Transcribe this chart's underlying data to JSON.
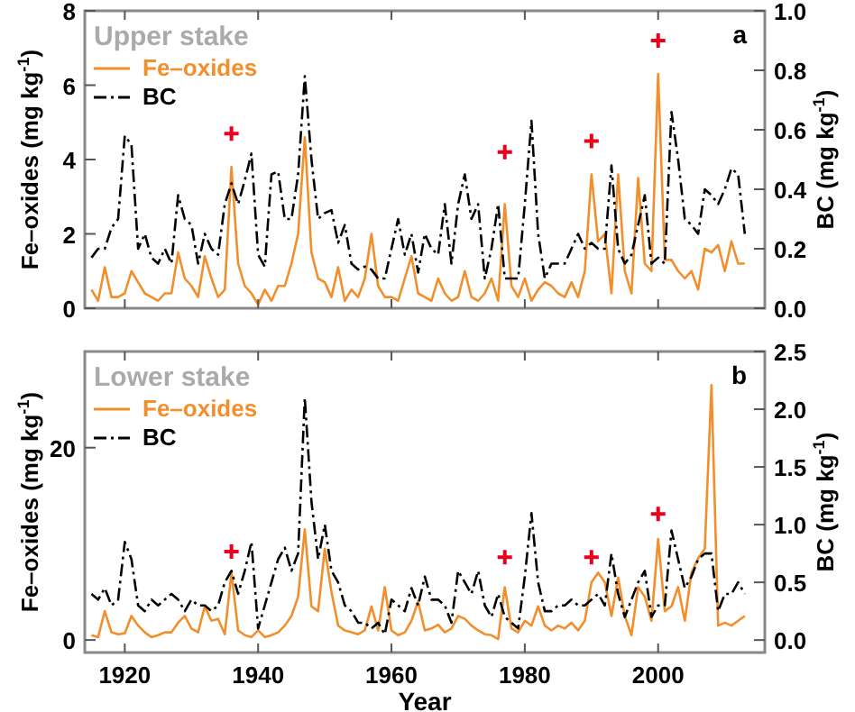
{
  "chart_data": [
    {
      "type": "line",
      "title": "Upper stake",
      "ylabel": "Fe–oxides (mg kg$^{-1}$)",
      "y2label": "BC (mg kg$^{-1}$)",
      "annotations": [
        "a"
      ],
      "legend": "top left",
      "tick_labels": "y",
      "xlim": [
        1914,
        2016
      ],
      "xticks": [
        1920,
        1940,
        1960,
        1980,
        2000
      ],
      "ylim": [
        0,
        8
      ],
      "yticks": [
        0,
        2,
        4,
        6,
        8
      ],
      "y2lim": [
        0,
        1
      ],
      "y2ticks": [
        {
          "value": 0,
          "label": "0.0"
        },
        {
          "value": 0.2,
          "label": "0.2"
        },
        {
          "value": 0.4,
          "label": "0.4"
        },
        {
          "value": 0.6,
          "label": "0.6"
        },
        {
          "value": 0.8,
          "label": "0.8"
        },
        {
          "value": 1,
          "label": "1.0"
        }
      ],
      "x": [
        1915,
        1916,
        1917,
        1918,
        1919,
        1920,
        1921,
        1922,
        1923,
        1924,
        1925,
        1926,
        1927,
        1928,
        1929,
        1930,
        1931,
        1932,
        1933,
        1934,
        1935,
        1936,
        1937,
        1938,
        1939,
        1940,
        1941,
        1942,
        1943,
        1944,
        1945,
        1946,
        1947,
        1948,
        1949,
        1950,
        1951,
        1952,
        1953,
        1954,
        1955,
        1956,
        1957,
        1958,
        1959,
        1960,
        1961,
        1962,
        1963,
        1964,
        1965,
        1966,
        1967,
        1968,
        1969,
        1970,
        1971,
        1972,
        1973,
        1974,
        1975,
        1976,
        1977,
        1978,
        1979,
        1980,
        1981,
        1982,
        1983,
        1984,
        1985,
        1986,
        1987,
        1988,
        1989,
        1990,
        1991,
        1992,
        1993,
        1994,
        1995,
        1996,
        1997,
        1998,
        1999,
        2000,
        2001,
        2002,
        2003,
        2004,
        2005,
        2006,
        2007,
        2008,
        2009,
        2010,
        2011,
        2012,
        2013
      ],
      "series": [
        {
          "name": "Fe–oxides",
          "color": "#f28e2b",
          "line_style": "solid",
          "values": [
            0.5,
            0.2,
            1.1,
            0.3,
            0.3,
            0.4,
            1.0,
            0.7,
            0.4,
            0.3,
            0.2,
            0.4,
            0.4,
            1.5,
            0.8,
            0.6,
            0.3,
            1.4,
            0.8,
            0.3,
            0.5,
            3.8,
            1.2,
            0.6,
            0.4,
            0.1,
            0.5,
            0.2,
            0.6,
            0.6,
            1.2,
            2.0,
            4.6,
            1.5,
            0.8,
            0.7,
            0.3,
            1.1,
            0.2,
            0.5,
            0.3,
            0.8,
            2.0,
            0.6,
            0.3,
            0.3,
            0.2,
            0.8,
            1.4,
            0.4,
            0.3,
            0.2,
            0.8,
            0.4,
            0.2,
            0.3,
            1.0,
            0.3,
            0.2,
            0.4,
            0.8,
            0.2,
            2.8,
            0.6,
            0.3,
            0.8,
            0.2,
            0.5,
            0.7,
            0.6,
            0.4,
            0.3,
            0.7,
            0.3,
            1.0,
            3.6,
            1.8,
            2.0,
            0.4,
            3.6,
            1.0,
            0.4,
            3.5,
            1.2,
            1.0,
            6.3,
            1.3,
            1.3,
            1.0,
            0.8,
            1.0,
            0.5,
            1.6,
            1.5,
            1.7,
            1.0,
            1.8,
            1.2,
            1.2
          ]
        },
        {
          "name": "BC",
          "color": "#000000",
          "axis": "y2",
          "line_style": "dashdot",
          "values": [
            0.17,
            0.2,
            0.2,
            0.27,
            0.3,
            0.58,
            0.55,
            0.2,
            0.25,
            0.17,
            0.15,
            0.2,
            0.15,
            0.38,
            0.3,
            0.28,
            0.15,
            0.25,
            0.2,
            0.18,
            0.35,
            0.42,
            0.35,
            0.43,
            0.52,
            0.18,
            0.14,
            0.45,
            0.46,
            0.3,
            0.3,
            0.45,
            0.78,
            0.5,
            0.3,
            0.32,
            0.33,
            0.22,
            0.28,
            0.15,
            0.13,
            0.14,
            0.13,
            0.1,
            0.1,
            0.2,
            0.3,
            0.18,
            0.25,
            0.12,
            0.25,
            0.2,
            0.18,
            0.35,
            0.15,
            0.35,
            0.45,
            0.3,
            0.35,
            0.1,
            0.2,
            0.35,
            0.1,
            0.1,
            0.1,
            0.35,
            0.63,
            0.25,
            0.1,
            0.15,
            0.15,
            0.15,
            0.2,
            0.25,
            0.2,
            0.22,
            0.2,
            0.2,
            0.48,
            0.2,
            0.15,
            0.18,
            0.28,
            0.38,
            0.15,
            0.17,
            0.15,
            0.66,
            0.5,
            0.3,
            0.28,
            0.25,
            0.4,
            0.38,
            0.35,
            0.4,
            0.47,
            0.45,
            0.25
          ]
        },
        {
          "type": "scatter",
          "color": "#e8001c",
          "marker": "cross",
          "x": [
            1936,
            1977,
            1990,
            2000
          ],
          "values": [
            4.7,
            4.2,
            4.5,
            7.2
          ]
        }
      ]
    },
    {
      "type": "line",
      "title": "Lower stake",
      "xlabel": "Year",
      "ylabel": "Fe–oxides (mg kg$^{-1}$)",
      "y2label": "BC (mg kg$^{-1}$)",
      "annotations": [
        "b"
      ],
      "legend": "top left",
      "xlim": [
        1914,
        2016
      ],
      "xticks": [
        1920,
        1940,
        1960,
        1980,
        2000
      ],
      "ylim": [
        -1.3,
        30
      ],
      "yticks": [
        0,
        20
      ],
      "y2lim": [
        -0.108,
        2.5
      ],
      "y2ticks": [
        {
          "value": 0,
          "label": "0.0"
        },
        {
          "value": 0.5,
          "label": "0.5"
        },
        {
          "value": 1,
          "label": "1.0"
        },
        {
          "value": 1.5,
          "label": "1.5"
        },
        {
          "value": 2,
          "label": "2.0"
        },
        {
          "value": 2.5,
          "label": "2.5"
        }
      ],
      "x": [
        1915,
        1916,
        1917,
        1918,
        1919,
        1920,
        1921,
        1922,
        1923,
        1924,
        1925,
        1926,
        1927,
        1928,
        1929,
        1930,
        1931,
        1932,
        1933,
        1934,
        1935,
        1936,
        1937,
        1938,
        1939,
        1940,
        1941,
        1942,
        1943,
        1944,
        1945,
        1946,
        1947,
        1948,
        1949,
        1950,
        1951,
        1952,
        1953,
        1954,
        1955,
        1956,
        1957,
        1958,
        1959,
        1960,
        1961,
        1962,
        1963,
        1964,
        1965,
        1966,
        1967,
        1968,
        1969,
        1970,
        1971,
        1972,
        1973,
        1974,
        1975,
        1976,
        1977,
        1978,
        1979,
        1980,
        1981,
        1982,
        1983,
        1984,
        1985,
        1986,
        1987,
        1988,
        1989,
        1990,
        1991,
        1992,
        1993,
        1994,
        1995,
        1996,
        1997,
        1998,
        1999,
        2000,
        2001,
        2002,
        2003,
        2004,
        2005,
        2006,
        2007,
        2008,
        2009,
        2010,
        2011,
        2012,
        2013
      ],
      "series": [
        {
          "name": "Fe–oxides",
          "color": "#f28e2b",
          "line_style": "solid",
          "values": [
            0.5,
            0.3,
            3.0,
            0.8,
            0.6,
            0.7,
            2.5,
            1.5,
            0.8,
            0.3,
            0.5,
            0.8,
            0.8,
            1.8,
            2.5,
            1.2,
            0.8,
            3.5,
            2.0,
            2.2,
            0.6,
            7.0,
            1.0,
            0.5,
            0.3,
            1.0,
            0.3,
            0.5,
            0.8,
            1.5,
            2.5,
            4.5,
            11.5,
            3.5,
            3.0,
            9.5,
            5.0,
            1.5,
            1.0,
            0.8,
            0.6,
            1.0,
            3.5,
            1.0,
            5.5,
            1.0,
            0.5,
            0.8,
            2.0,
            4.0,
            1.0,
            1.2,
            1.6,
            0.8,
            1.2,
            2.5,
            2.2,
            1.5,
            1.0,
            0.6,
            0.5,
            0.1,
            5.5,
            1.2,
            0.8,
            2.0,
            1.5,
            3.5,
            1.5,
            1.0,
            1.5,
            1.2,
            1.8,
            1.0,
            2.0,
            6.0,
            7.0,
            6.0,
            2.5,
            6.5,
            2.5,
            0.5,
            5.5,
            4.5,
            2.0,
            10.5,
            3.0,
            3.5,
            5.5,
            2.0,
            7.0,
            8.5,
            9.5,
            26.5,
            1.5,
            1.8,
            1.5,
            2.0,
            2.5
          ]
        },
        {
          "name": "BC",
          "color": "#000000",
          "axis": "y2",
          "line_style": "dashdot",
          "values": [
            0.4,
            0.35,
            0.45,
            0.3,
            0.35,
            0.85,
            0.7,
            0.3,
            0.25,
            0.35,
            0.3,
            0.35,
            0.4,
            0.35,
            0.25,
            0.35,
            0.3,
            0.3,
            0.25,
            0.3,
            0.5,
            0.6,
            0.4,
            0.6,
            0.85,
            0.1,
            0.3,
            0.5,
            0.7,
            0.8,
            0.6,
            0.75,
            2.1,
            1.2,
            0.7,
            1.0,
            0.6,
            0.5,
            0.3,
            0.25,
            0.15,
            0.15,
            0.1,
            0.15,
            0.05,
            0.35,
            0.3,
            0.25,
            0.45,
            0.3,
            0.55,
            0.35,
            0.35,
            0.3,
            0.15,
            0.6,
            0.5,
            0.4,
            0.6,
            0.3,
            0.2,
            0.4,
            0.2,
            0.15,
            0.1,
            0.55,
            1.1,
            0.5,
            0.25,
            0.25,
            0.3,
            0.3,
            0.35,
            0.3,
            0.3,
            0.35,
            0.4,
            0.3,
            0.75,
            0.4,
            0.2,
            0.35,
            0.5,
            0.6,
            0.2,
            0.3,
            0.3,
            0.95,
            0.7,
            0.45,
            0.55,
            0.7,
            0.75,
            0.75,
            0.25,
            0.4,
            0.4,
            0.5,
            0.4
          ]
        },
        {
          "type": "scatter",
          "color": "#e8001c",
          "marker": "cross",
          "x": [
            1936,
            1977,
            1990,
            2000
          ],
          "values": [
            9.2,
            8.6,
            8.6,
            13.1
          ]
        }
      ]
    }
  ]
}
